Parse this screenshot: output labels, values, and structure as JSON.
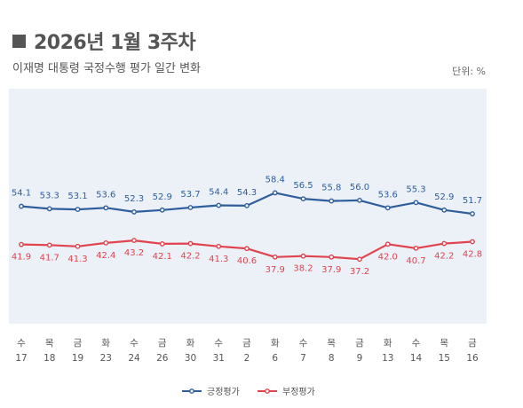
{
  "header": {
    "title": "2026년 1월 3주차",
    "subtitle": "이재명 대통령 국정수행 평가 일간 변화",
    "unit": "단위: %"
  },
  "colors": {
    "positive": "#2e5f9c",
    "negative": "#e0444f",
    "plot_bg": "#ecf0f7"
  },
  "chart_data": {
    "type": "line",
    "categories": [
      {
        "day": "수",
        "date": "17"
      },
      {
        "day": "목",
        "date": "18"
      },
      {
        "day": "금",
        "date": "19"
      },
      {
        "day": "화",
        "date": "23"
      },
      {
        "day": "수",
        "date": "24"
      },
      {
        "day": "금",
        "date": "26"
      },
      {
        "day": "화",
        "date": "30"
      },
      {
        "day": "수",
        "date": "31"
      },
      {
        "day": "금",
        "date": "2"
      },
      {
        "day": "화",
        "date": "6"
      },
      {
        "day": "수",
        "date": "7"
      },
      {
        "day": "목",
        "date": "8"
      },
      {
        "day": "금",
        "date": "9"
      },
      {
        "day": "화",
        "date": "13"
      },
      {
        "day": "수",
        "date": "14"
      },
      {
        "day": "목",
        "date": "15"
      },
      {
        "day": "금",
        "date": "16"
      }
    ],
    "series": [
      {
        "name": "긍정평가",
        "color": "#2e5f9c",
        "values": [
          54.1,
          53.3,
          53.1,
          53.6,
          52.3,
          52.9,
          53.7,
          54.4,
          54.3,
          58.4,
          56.5,
          55.8,
          56.0,
          53.6,
          55.3,
          52.9,
          51.7
        ]
      },
      {
        "name": "부정평가",
        "color": "#e0444f",
        "values": [
          41.9,
          41.7,
          41.3,
          42.4,
          43.2,
          42.1,
          42.2,
          41.3,
          40.6,
          37.9,
          38.2,
          37.9,
          37.2,
          42.0,
          40.7,
          42.2,
          42.8
        ]
      }
    ],
    "legend": "bottom-center",
    "grid": false
  }
}
